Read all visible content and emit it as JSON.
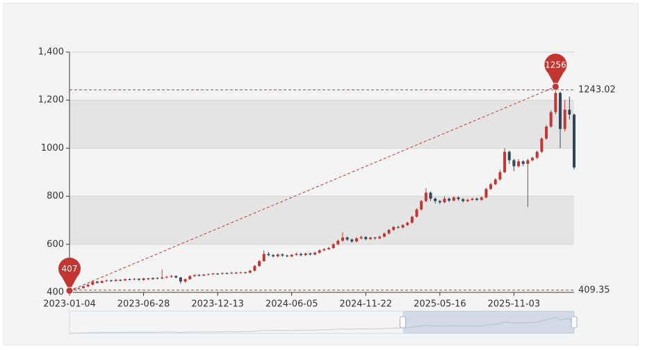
{
  "chart_data": {
    "type": "candlestick",
    "categories": [
      "2023-01-04",
      null,
      null,
      null,
      null,
      null,
      null,
      null,
      null,
      null,
      null,
      null,
      null,
      null,
      null,
      null,
      "2023-06-28",
      null,
      null,
      null,
      null,
      null,
      null,
      null,
      null,
      null,
      null,
      null,
      null,
      null,
      null,
      null,
      "2023-12-13",
      null,
      null,
      null,
      null,
      null,
      null,
      null,
      null,
      null,
      null,
      null,
      null,
      null,
      null,
      null,
      "2024-06-05",
      null,
      null,
      null,
      null,
      null,
      null,
      null,
      null,
      null,
      null,
      null,
      null,
      null,
      null,
      null,
      "2024-11-22",
      null,
      null,
      null,
      null,
      null,
      null,
      null,
      null,
      null,
      null,
      null,
      null,
      null,
      null,
      null,
      "2025-05-16",
      null,
      null,
      null,
      null,
      null,
      null,
      null,
      null,
      null,
      null,
      null,
      null,
      null,
      null,
      null,
      "2025-11-03",
      null,
      null,
      null,
      null,
      null,
      null,
      null,
      null,
      null,
      null,
      null,
      null,
      null
    ],
    "series": [
      {
        "up_color": "#c23531",
        "down_color": "#314656",
        "values": [
          [
            410,
            412,
            407,
            416
          ],
          [
            412,
            415,
            409,
            418
          ],
          [
            415,
            418,
            412,
            421
          ],
          [
            418,
            425,
            415,
            428
          ],
          [
            425,
            432,
            422,
            436
          ],
          [
            432,
            445,
            429,
            449
          ],
          [
            445,
            440,
            436,
            448
          ],
          [
            440,
            447,
            437,
            450
          ],
          [
            447,
            450,
            444,
            454
          ],
          [
            450,
            448,
            444,
            453
          ],
          [
            448,
            452,
            445,
            456
          ],
          [
            452,
            450,
            446,
            455
          ],
          [
            450,
            455,
            447,
            458
          ],
          [
            455,
            453,
            449,
            458
          ],
          [
            453,
            456,
            450,
            460
          ],
          [
            456,
            452,
            448,
            459
          ],
          [
            452,
            458,
            449,
            461
          ],
          [
            458,
            455,
            451,
            461
          ],
          [
            455,
            460,
            452,
            463
          ],
          [
            460,
            458,
            454,
            463
          ],
          [
            458,
            462,
            455,
            495
          ],
          [
            462,
            465,
            458,
            468
          ],
          [
            465,
            468,
            461,
            472
          ],
          [
            468,
            462,
            458,
            471
          ],
          [
            462,
            445,
            436,
            464
          ],
          [
            445,
            455,
            440,
            458
          ],
          [
            455,
            468,
            452,
            471
          ],
          [
            468,
            472,
            464,
            475
          ],
          [
            472,
            470,
            466,
            475
          ],
          [
            470,
            474,
            467,
            477
          ],
          [
            474,
            476,
            471,
            479
          ],
          [
            476,
            478,
            473,
            481
          ],
          [
            478,
            477,
            473,
            481
          ],
          [
            477,
            480,
            474,
            483
          ],
          [
            480,
            479,
            475,
            483
          ],
          [
            479,
            482,
            476,
            485
          ],
          [
            482,
            481,
            477,
            485
          ],
          [
            481,
            483,
            478,
            486
          ],
          [
            483,
            482,
            478,
            486
          ],
          [
            482,
            490,
            479,
            494
          ],
          [
            490,
            510,
            487,
            514
          ],
          [
            510,
            530,
            506,
            535
          ],
          [
            530,
            560,
            527,
            575
          ],
          [
            560,
            555,
            550,
            568
          ],
          [
            555,
            550,
            545,
            560
          ],
          [
            550,
            558,
            546,
            562
          ],
          [
            558,
            553,
            548,
            562
          ],
          [
            553,
            550,
            546,
            557
          ],
          [
            550,
            556,
            547,
            560
          ],
          [
            556,
            560,
            552,
            566
          ],
          [
            560,
            555,
            550,
            565
          ],
          [
            555,
            562,
            551,
            566
          ],
          [
            562,
            558,
            553,
            566
          ],
          [
            558,
            565,
            554,
            569
          ],
          [
            565,
            575,
            561,
            579
          ],
          [
            575,
            580,
            571,
            584
          ],
          [
            580,
            585,
            576,
            590
          ],
          [
            585,
            600,
            581,
            605
          ],
          [
            600,
            615,
            596,
            620
          ],
          [
            615,
            628,
            610,
            650
          ],
          [
            628,
            620,
            614,
            633
          ],
          [
            620,
            612,
            606,
            625
          ],
          [
            612,
            625,
            608,
            630
          ],
          [
            625,
            630,
            620,
            636
          ],
          [
            630,
            622,
            616,
            634
          ],
          [
            622,
            628,
            618,
            632
          ],
          [
            628,
            625,
            620,
            631
          ],
          [
            625,
            632,
            621,
            636
          ],
          [
            632,
            645,
            628,
            650
          ],
          [
            645,
            660,
            641,
            664
          ],
          [
            660,
            672,
            656,
            676
          ],
          [
            672,
            670,
            665,
            677
          ],
          [
            670,
            680,
            666,
            684
          ],
          [
            680,
            690,
            676,
            695
          ],
          [
            690,
            715,
            686,
            720
          ],
          [
            715,
            745,
            711,
            750
          ],
          [
            745,
            780,
            740,
            785
          ],
          [
            780,
            815,
            775,
            835
          ],
          [
            815,
            790,
            780,
            820
          ],
          [
            790,
            780,
            770,
            795
          ],
          [
            780,
            775,
            768,
            785
          ],
          [
            775,
            790,
            771,
            800
          ],
          [
            790,
            782,
            776,
            795
          ],
          [
            782,
            795,
            778,
            800
          ],
          [
            795,
            788,
            782,
            800
          ],
          [
            788,
            780,
            774,
            792
          ],
          [
            780,
            785,
            776,
            790
          ],
          [
            785,
            790,
            781,
            794
          ],
          [
            790,
            785,
            780,
            794
          ],
          [
            785,
            795,
            781,
            800
          ],
          [
            795,
            830,
            791,
            835
          ],
          [
            830,
            850,
            826,
            856
          ],
          [
            850,
            870,
            846,
            875
          ],
          [
            870,
            900,
            865,
            910
          ],
          [
            900,
            985,
            895,
            1000
          ],
          [
            985,
            950,
            935,
            990
          ],
          [
            950,
            925,
            905,
            955
          ],
          [
            925,
            945,
            920,
            955
          ],
          [
            945,
            935,
            925,
            950
          ],
          [
            935,
            950,
            755,
            956
          ],
          [
            950,
            960,
            945,
            965
          ],
          [
            960,
            985,
            955,
            990
          ],
          [
            985,
            1040,
            980,
            1046
          ],
          [
            1040,
            1090,
            1035,
            1096
          ],
          [
            1090,
            1150,
            1085,
            1158
          ],
          [
            1150,
            1230,
            1140,
            1256
          ],
          [
            1230,
            1080,
            1000,
            1235
          ],
          [
            1080,
            1160,
            1070,
            1200
          ],
          [
            1160,
            1140,
            1120,
            1215
          ],
          [
            1140,
            920,
            912,
            1145
          ]
        ]
      }
    ],
    "ylim": [
      400,
      1400
    ],
    "yticks": [
      400,
      600,
      800,
      1000,
      {
        "value": 1200,
        "label": "1,200"
      },
      {
        "value": 1400,
        "label": "1,400"
      }
    ],
    "split_area_colors": [
      "#f4f4f4",
      "#e4e4e4"
    ],
    "max_point": 1256,
    "min_point": 407,
    "mark_lines": [
      1243.02,
      409.35
    ],
    "mark_color": "#c23531"
  }
}
